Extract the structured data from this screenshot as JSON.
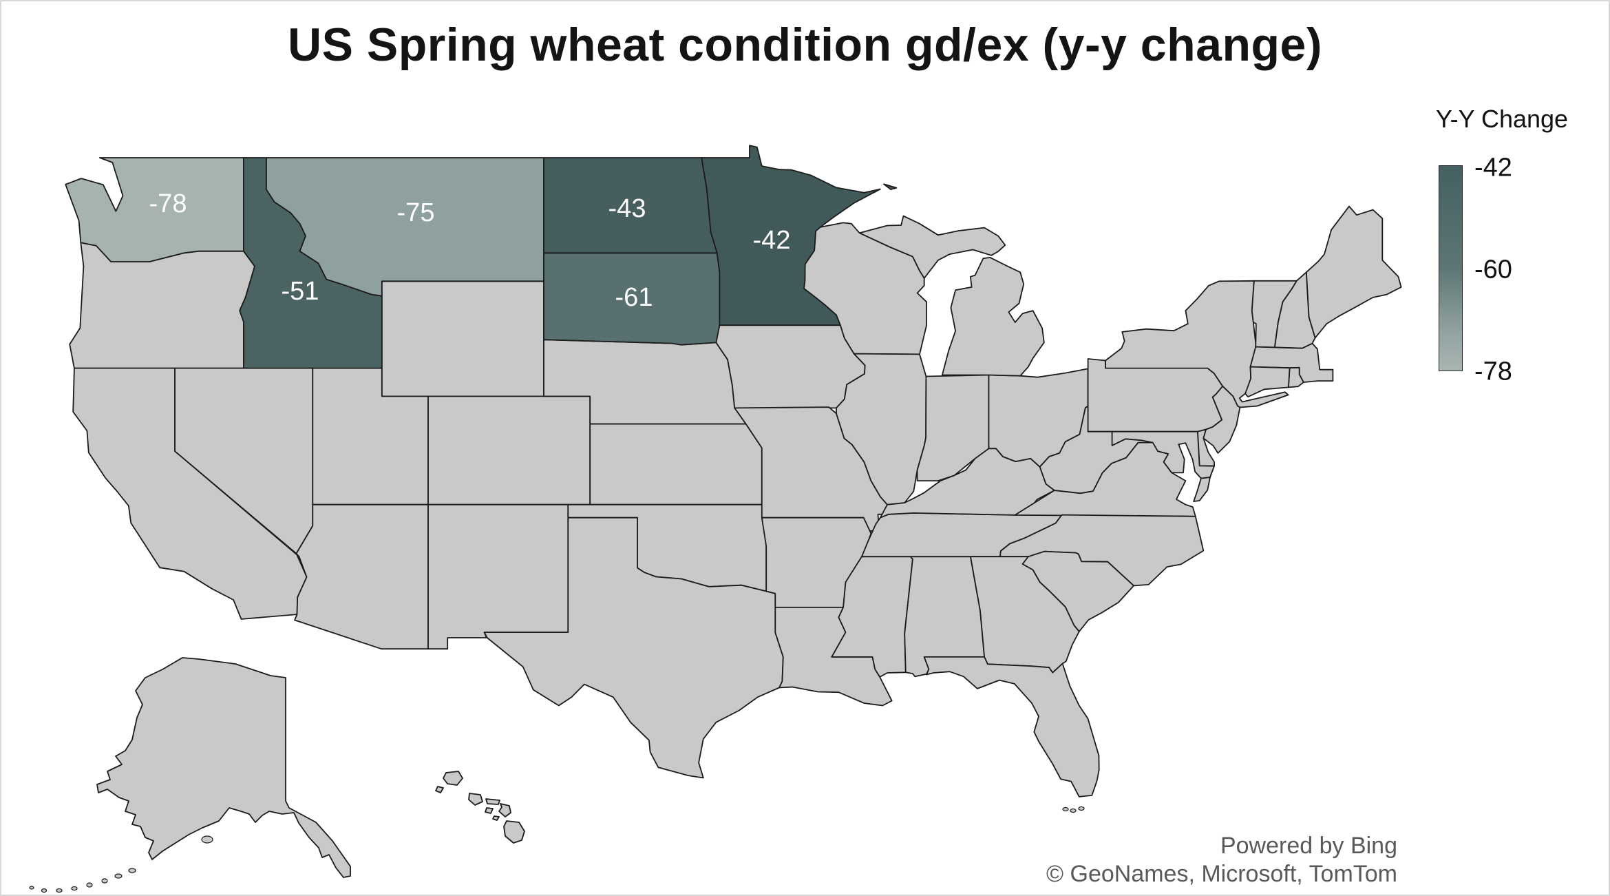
{
  "title": "US Spring wheat condition gd/ex (y-y change)",
  "legend": {
    "title": "Y-Y Change",
    "ticks": [
      "-42",
      "-60",
      "-78"
    ],
    "gradient_top": "#446060",
    "gradient_mid": "#5d7675",
    "gradient_low": "#93a4a2",
    "gradient_bottom": "#a9b5b3"
  },
  "attribution": {
    "line1": "Powered by Bing",
    "line2": "© GeoNames, Microsoft, TomTom"
  },
  "colors": {
    "default_state": "#c8c9c8",
    "state_border": "#1b1b1b",
    "background": "#ffffff",
    "label_text": "#ffffff",
    "frame": "#d8d8d8"
  },
  "states": [
    {
      "id": "WA",
      "name": "Washington",
      "value": -78,
      "label": "-78",
      "color": "#a7b3b1"
    },
    {
      "id": "MT",
      "name": "Montana",
      "value": -75,
      "label": "-75",
      "color": "#8fa19f"
    },
    {
      "id": "ID",
      "name": "Idaho",
      "value": -51,
      "label": "-51",
      "color": "#4b6362"
    },
    {
      "id": "ND",
      "name": "North Dakota",
      "value": -43,
      "label": "-43",
      "color": "#465f5e"
    },
    {
      "id": "SD",
      "name": "South Dakota",
      "value": -61,
      "label": "-61",
      "color": "#587170"
    },
    {
      "id": "MN",
      "name": "Minnesota",
      "value": -42,
      "label": "-42",
      "color": "#415a59"
    }
  ],
  "chart_data": {
    "type": "choropleth",
    "title": "US Spring wheat condition gd/ex (y-y change)",
    "legend_title": "Y-Y Change",
    "value_range": [
      -78,
      -42
    ],
    "legend_ticks": [
      -42,
      -60,
      -78
    ],
    "series": [
      {
        "state": "Washington",
        "abbr": "WA",
        "value": -78
      },
      {
        "state": "Montana",
        "abbr": "MT",
        "value": -75
      },
      {
        "state": "Idaho",
        "abbr": "ID",
        "value": -51
      },
      {
        "state": "North Dakota",
        "abbr": "ND",
        "value": -43
      },
      {
        "state": "South Dakota",
        "abbr": "SD",
        "value": -61
      },
      {
        "state": "Minnesota",
        "abbr": "MN",
        "value": -42
      }
    ],
    "notes": "All other states shown with no-data gray fill; darker teal = value closer to -42, lighter = closer to -78"
  }
}
